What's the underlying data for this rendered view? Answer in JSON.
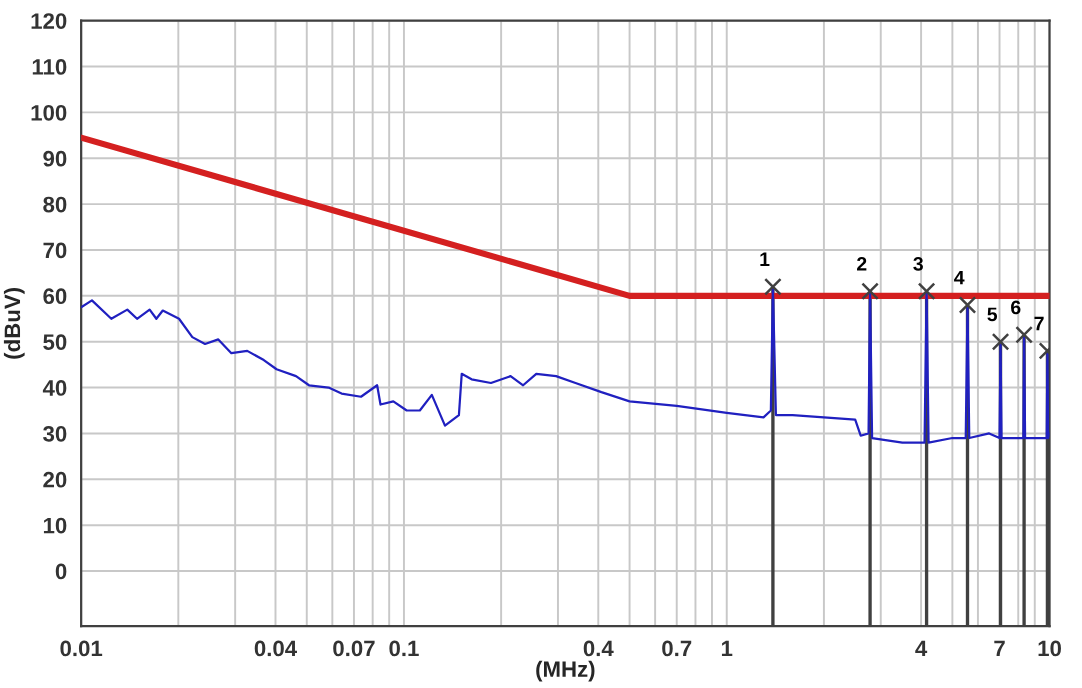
{
  "chart_data": {
    "type": "line",
    "xlabel": "(MHz)",
    "ylabel": "(dBuV)",
    "log": "x",
    "grid": true,
    "xlim": [
      0.01,
      10
    ],
    "ylim": [
      -12,
      120
    ],
    "xticks": [
      0.01,
      {
        "value": 0.02,
        "label": null
      },
      {
        "value": 0.03,
        "label": null
      },
      0.04,
      {
        "value": 0.05,
        "label": null
      },
      {
        "value": 0.06,
        "label": null
      },
      0.07,
      {
        "value": 0.08,
        "label": null
      },
      {
        "value": 0.09,
        "label": null
      },
      0.1,
      {
        "value": 0.2,
        "label": null
      },
      {
        "value": 0.3,
        "label": null
      },
      0.4,
      {
        "value": 0.5,
        "label": null
      },
      {
        "value": 0.6,
        "label": null
      },
      0.7,
      {
        "value": 0.8,
        "label": null
      },
      {
        "value": 0.9,
        "label": null
      },
      1,
      {
        "value": 2,
        "label": null
      },
      {
        "value": 3,
        "label": null
      },
      4,
      {
        "value": 5,
        "label": null
      },
      {
        "value": 6,
        "label": null
      },
      7,
      {
        "value": 8,
        "label": null
      },
      {
        "value": 9,
        "label": null
      },
      10
    ],
    "yticks": [
      0,
      10,
      20,
      30,
      40,
      50,
      60,
      70,
      80,
      90,
      100,
      110,
      120
    ],
    "series": [
      {
        "type": "line",
        "color": "#d42020",
        "x": [
          0.01,
          0.5,
          10
        ],
        "values": [
          94.5,
          60,
          60
        ]
      },
      {
        "color": "#2020c0",
        "x": [
          0.01,
          0.0108,
          0.0124,
          0.0139,
          0.0149,
          0.0163,
          0.0171,
          0.0179,
          0.0201,
          0.0221,
          0.0242,
          0.0266,
          0.0292,
          0.0327,
          0.0368,
          0.0403,
          0.0463,
          0.0508,
          0.0584,
          0.0641,
          0.0736,
          0.0826,
          0.0846,
          0.0927,
          0.102,
          0.112,
          0.122,
          0.134,
          0.148,
          0.151,
          0.162,
          0.186,
          0.214,
          0.234,
          0.257,
          0.296,
          0.34,
          0.409,
          0.5,
          0.7,
          1.0,
          1.3,
          1.37,
          1.39,
          1.42,
          1.6,
          2.0,
          2.5,
          2.6,
          2.75,
          2.78,
          2.82,
          3.5,
          4.1,
          4.16,
          4.22,
          5.0,
          5.5,
          5.57,
          5.64,
          6.5,
          7.0,
          7.05,
          7.1,
          8.0,
          8.3,
          8.34,
          8.4,
          9.5,
          9.8,
          9.85,
          9.9,
          10
        ],
        "values": [
          57.5,
          59,
          55,
          57,
          55,
          57,
          55,
          56.8,
          55,
          51,
          49.5,
          50.5,
          47.5,
          48,
          46,
          44,
          42.5,
          40.5,
          40,
          38.7,
          38,
          40.5,
          36.3,
          37,
          35,
          35,
          38.4,
          31.7,
          34,
          43,
          41.8,
          41,
          42.5,
          40.5,
          43,
          42.5,
          41,
          39,
          37,
          36,
          34.5,
          33.5,
          35,
          62,
          34,
          34,
          33.5,
          33,
          29.5,
          30,
          61,
          29,
          28,
          28,
          61,
          28,
          29,
          29,
          58,
          29,
          30,
          29,
          50,
          29,
          29,
          29,
          51.5,
          29,
          29,
          29,
          48,
          29,
          30
        ]
      },
      {
        "type": "lollipop",
        "color": "#404040",
        "marker": "cross",
        "x": [
          1.39,
          2.78,
          4.16,
          5.57,
          7.05,
          8.34,
          9.85
        ],
        "values": [
          62,
          61,
          61,
          58,
          50,
          51.5,
          48
        ]
      }
    ],
    "annotations": [
      {
        "text": "1",
        "x": 1.39,
        "y": 62
      },
      {
        "text": "2",
        "x": 2.78,
        "y": 61
      },
      {
        "text": "3",
        "x": 4.16,
        "y": 61
      },
      {
        "text": "4",
        "x": 5.57,
        "y": 58
      },
      {
        "text": "5",
        "x": 7.05,
        "y": 50
      },
      {
        "text": "6",
        "x": 8.34,
        "y": 51.5
      },
      {
        "text": "7",
        "x": 9.85,
        "y": 48
      }
    ]
  }
}
